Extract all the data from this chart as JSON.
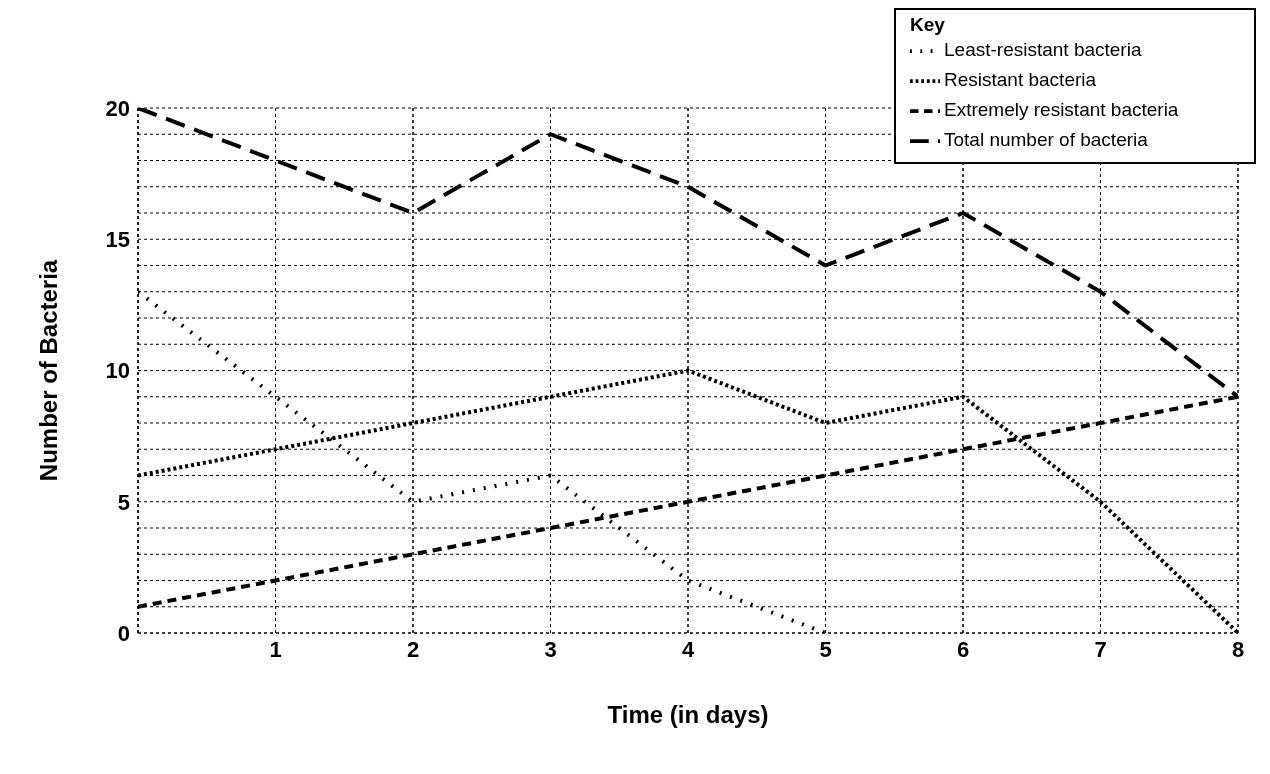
{
  "chart_data": {
    "type": "line",
    "xlabel": "Time (in days)",
    "ylabel": "Number of Bacteria",
    "legend_title": "Key",
    "x": [
      0,
      1,
      2,
      3,
      4,
      5,
      6,
      7,
      8
    ],
    "series": [
      {
        "name": "Least-resistant bacteria",
        "color": "#000000",
        "line_style": "dotted",
        "values": [
          13,
          9,
          5,
          6,
          2,
          0,
          null,
          null,
          null
        ]
      },
      {
        "name": "Resistant bacteria",
        "color": "#000000",
        "line_style": "dotted",
        "values": [
          6,
          7,
          8,
          9,
          10,
          8,
          9,
          5,
          0
        ]
      },
      {
        "name": "Extremely resistant bacteria",
        "color": "#000000",
        "line_style": "dashed",
        "values": [
          1,
          2,
          3,
          4,
          5,
          6,
          7,
          8,
          9
        ]
      },
      {
        "name": "Total number of bacteria",
        "color": "#000000",
        "line_style": "dashed",
        "values": [
          20,
          18,
          16,
          19,
          17,
          14,
          16,
          13,
          9
        ]
      }
    ],
    "xlim": [
      0,
      8
    ],
    "xticks": [
      {
        "value": 0,
        "label": null
      },
      1,
      2,
      3,
      4,
      5,
      6,
      7,
      8
    ],
    "ylim": [
      0,
      20
    ],
    "yticks": [
      0,
      5,
      10,
      15,
      20
    ],
    "grid": true,
    "legend": "top right",
    "marker": "none"
  }
}
